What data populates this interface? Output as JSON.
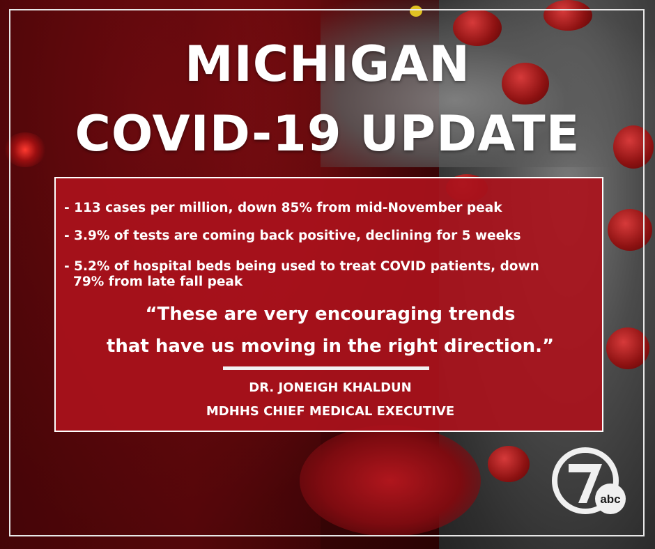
{
  "title": {
    "line1": "MICHIGAN",
    "line2": "COVID-19 UPDATE"
  },
  "bullets": [
    "- 113 cases per million, down 85% from mid-November peak",
    "- 3.9% of tests are coming back positive, declining for 5 weeks",
    "- 5.2% of hospital beds being used to treat COVID patients, down",
    "79% from late fall peak"
  ],
  "quote": {
    "line1": "“These are very encouraging trends",
    "line2": "that have us moving in the right direction.”"
  },
  "attribution": {
    "name": "DR. JONEIGH KHALDUN",
    "role": "MDHHS CHIEF MEDICAL EXECUTIVE"
  },
  "logo": {
    "numeral": "7",
    "network": "abc"
  },
  "colors": {
    "panel": "#aa121c",
    "text": "#ffffff",
    "frame": "#e8e8e8"
  }
}
